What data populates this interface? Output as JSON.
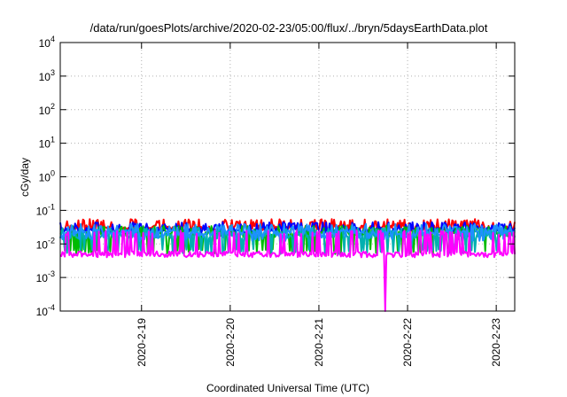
{
  "chart_data": {
    "type": "line",
    "title": "/data/run/goesPlots/archive/2020-02-23/05:00/flux/../bryn/5daysEarthData.plot",
    "xlabel": "Coordinated Universal Time (UTC)",
    "ylabel": "cGy/day",
    "y_scale": "log",
    "ylim": [
      0.0001,
      10000
    ],
    "y_ticks": [
      {
        "value": 0.0001,
        "base": "10",
        "exp": "-4"
      },
      {
        "value": 0.001,
        "base": "10",
        "exp": "-3"
      },
      {
        "value": 0.01,
        "base": "10",
        "exp": "-2"
      },
      {
        "value": 0.1,
        "base": "10",
        "exp": "-1"
      },
      {
        "value": 1,
        "base": "10",
        "exp": "0"
      },
      {
        "value": 10,
        "base": "10",
        "exp": "1"
      },
      {
        "value": 100,
        "base": "10",
        "exp": "2"
      },
      {
        "value": 1000,
        "base": "10",
        "exp": "3"
      },
      {
        "value": 10000,
        "base": "10",
        "exp": "4"
      }
    ],
    "xlim": [
      "2020-02-18 02:00",
      "2020-02-23 05:00"
    ],
    "x_ticks": [
      "2020-2-19",
      "2020-2-20",
      "2020-2-21",
      "2020-2-22",
      "2020-2-23"
    ],
    "grid": true,
    "series": [
      {
        "color": "#ff0000",
        "base": 0.03,
        "low": 0.022,
        "high": 0.055
      },
      {
        "color": "#0000ff",
        "base": 0.026,
        "low": 0.02,
        "high": 0.045
      },
      {
        "color": "#00bb00",
        "base": 0.02,
        "low": 0.005,
        "high": 0.035
      },
      {
        "color": "#00b0b0",
        "base": 0.018,
        "low": 0.005,
        "high": 0.03
      },
      {
        "color": "#1e90ff",
        "base": 0.022,
        "low": 0.012,
        "high": 0.04
      },
      {
        "color": "#ff00ff",
        "base": 0.005,
        "low": 0.004,
        "high": 0.025,
        "dip": {
          "x": "2020-02-21 18:00",
          "value": 0.0001
        }
      }
    ]
  }
}
